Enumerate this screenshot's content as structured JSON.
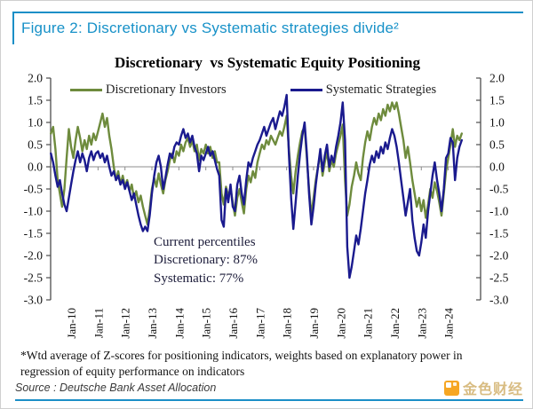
{
  "figure_header": {
    "title": "Figure 2: Discretionary vs Systematic strategies divide²"
  },
  "accent_colors": {
    "header_blue": "#1b8fc7",
    "discretionary_green": "#6e8b3d",
    "systematic_navy": "#1a1a8e",
    "zero_line_gray": "#8c8c8c"
  },
  "chart_data": {
    "type": "line",
    "title": "Discretionary  vs Systematic Equity Positioning",
    "x_start_decimal_year": 2009.25,
    "x_step_months": 1,
    "xlim": [
      2009.24,
      2025.2
    ],
    "ylim": [
      -3.0,
      2.0
    ],
    "y_tick_step": 0.5,
    "y_tick_labels": [
      "2.0",
      "1.5",
      "1.0",
      "0.5",
      "0.0",
      "-0.5",
      "-1.0",
      "-1.5",
      "-2.0",
      "-2.5",
      "-3.0"
    ],
    "x_tick_years": [
      2010,
      2011,
      2012,
      2013,
      2014,
      2015,
      2016,
      2017,
      2018,
      2019,
      2020,
      2021,
      2022,
      2023,
      2024
    ],
    "x_tick_labels": [
      "Jan-10",
      "Jan-11",
      "Jan-12",
      "Jan-13",
      "Jan-14",
      "Jan-15",
      "Jan-16",
      "Jan-17",
      "Jan-18",
      "Jan-19",
      "Jan-20",
      "Jan-21",
      "Jan-22",
      "Jan-23",
      "Jan-24"
    ],
    "grid": "zero-line-only",
    "legend_position": "top-inside",
    "series": [
      {
        "name": "Discretionary Investors",
        "color": "#6e8b3d",
        "values": [
          0.75,
          0.9,
          0.4,
          -0.3,
          -0.6,
          -0.9,
          -0.5,
          0.2,
          0.85,
          0.45,
          0.2,
          0.6,
          0.9,
          0.65,
          0.35,
          0.6,
          0.4,
          0.7,
          0.5,
          0.75,
          0.6,
          0.8,
          1.0,
          1.2,
          0.9,
          1.1,
          0.7,
          0.4,
          0.0,
          -0.3,
          -0.1,
          -0.4,
          -0.2,
          -0.45,
          -0.3,
          -0.55,
          -0.4,
          -0.7,
          -0.55,
          -0.8,
          -0.65,
          -0.9,
          -1.1,
          -1.3,
          -0.95,
          -0.5,
          -0.25,
          -0.45,
          -0.15,
          -0.4,
          -0.6,
          -0.3,
          -0.1,
          0.15,
          0.3,
          0.1,
          0.35,
          0.25,
          0.5,
          0.35,
          0.55,
          0.65,
          0.45,
          0.6,
          0.35,
          0.5,
          0.15,
          0.4,
          0.3,
          0.5,
          0.3,
          0.45,
          0.2,
          0.35,
          0.1,
          0.1,
          -0.6,
          -0.85,
          -0.45,
          -0.65,
          -0.5,
          -0.8,
          -1.1,
          -0.7,
          -0.5,
          -0.8,
          -1.05,
          -0.5,
          -0.2,
          -0.35,
          -0.1,
          -0.25,
          0.1,
          0.3,
          0.5,
          0.4,
          0.6,
          0.5,
          0.7,
          0.6,
          0.5,
          0.65,
          0.8,
          0.7,
          0.9,
          1.15,
          0.4,
          -0.2,
          -0.6,
          -0.1,
          0.25,
          0.55,
          0.8,
          0.9,
          0.2,
          -0.5,
          -1.1,
          -0.7,
          -0.3,
          0.0,
          0.3,
          -0.2,
          0.1,
          0.35,
          -0.1,
          0.15,
          0.0,
          0.3,
          0.5,
          0.7,
          0.95,
          -0.3,
          -1.1,
          -0.85,
          -0.45,
          -0.2,
          0.1,
          -0.15,
          -0.3,
          0.2,
          0.55,
          0.8,
          0.6,
          0.9,
          1.1,
          0.95,
          1.2,
          1.05,
          1.3,
          1.15,
          1.4,
          1.25,
          1.45,
          1.3,
          1.45,
          1.2,
          0.9,
          0.6,
          0.2,
          0.45,
          0.1,
          -0.3,
          -0.6,
          -0.9,
          -0.7,
          -1.0,
          -0.75,
          -1.15,
          -0.85,
          -0.5,
          -0.7,
          -0.35,
          -0.55,
          -0.8,
          -1.1,
          -0.6,
          -0.1,
          0.2,
          0.5,
          0.85,
          0.45,
          0.7,
          0.6,
          0.75
        ]
      },
      {
        "name": "Systematic Strategies",
        "color": "#1a1a8e",
        "values": [
          0.3,
          0.1,
          -0.2,
          -0.45,
          -0.3,
          -0.6,
          -0.85,
          -1.0,
          -0.7,
          -0.4,
          -0.1,
          0.15,
          0.35,
          0.1,
          0.3,
          0.15,
          -0.1,
          0.2,
          0.35,
          0.15,
          0.3,
          0.35,
          0.2,
          0.3,
          0.1,
          0.25,
          0.0,
          -0.2,
          -0.1,
          -0.3,
          -0.2,
          -0.4,
          -0.3,
          -0.5,
          -0.35,
          -0.55,
          -0.75,
          -0.6,
          -0.85,
          -1.1,
          -1.3,
          -1.45,
          -1.35,
          -1.45,
          -1.1,
          -0.6,
          -0.2,
          0.1,
          0.25,
          0.0,
          -0.5,
          -0.25,
          0.05,
          0.3,
          0.2,
          0.45,
          0.55,
          0.5,
          0.7,
          0.85,
          0.65,
          0.75,
          0.55,
          0.7,
          0.45,
          0.3,
          -0.1,
          0.25,
          0.15,
          0.3,
          0.45,
          0.25,
          0.35,
          0.15,
          -0.05,
          -0.2,
          -1.2,
          -1.35,
          -0.5,
          -0.8,
          -0.4,
          -0.9,
          -1.0,
          -0.4,
          -0.2,
          -0.6,
          -0.85,
          -0.3,
          0.1,
          0.0,
          0.2,
          0.35,
          0.5,
          0.6,
          0.75,
          0.9,
          0.7,
          0.85,
          1.0,
          1.1,
          0.85,
          1.05,
          1.25,
          1.15,
          1.35,
          1.62,
          0.3,
          -0.7,
          -1.4,
          -0.8,
          -0.2,
          0.3,
          0.7,
          1.0,
          0.3,
          -0.6,
          -1.3,
          -0.9,
          -0.4,
          0.0,
          0.4,
          -0.1,
          0.25,
          0.5,
          0.0,
          0.25,
          0.1,
          0.45,
          0.7,
          1.0,
          1.45,
          0.6,
          -1.8,
          -2.5,
          -2.25,
          -1.9,
          -1.55,
          -1.75,
          -1.4,
          -1.0,
          -0.6,
          -0.3,
          0.05,
          0.25,
          0.1,
          0.35,
          0.2,
          0.45,
          0.3,
          0.55,
          0.4,
          0.65,
          0.85,
          0.7,
          0.45,
          0.1,
          -0.3,
          -0.7,
          -1.1,
          -0.8,
          -0.5,
          -1.2,
          -1.6,
          -1.9,
          -2.0,
          -1.7,
          -1.3,
          -1.6,
          -1.0,
          -0.6,
          -0.2,
          0.1,
          -0.3,
          -0.6,
          -1.0,
          -0.5,
          0.2,
          0.3,
          0.65,
          0.55,
          -0.3,
          0.2,
          0.45,
          0.6
        ]
      }
    ],
    "annotation": {
      "lines": [
        "Current percentiles",
        "Discretionary: 87%",
        "Systematic: 77%"
      ]
    }
  },
  "footnote": "*Wtd average of Z-scores for positioning indicators, weights based on explanatory power in regression of equity performance on indicators",
  "source": "Source : Deutsche Bank Asset Allocation",
  "logo": {
    "text": "金色财经",
    "icon": "jinse-finance-icon",
    "orange": "#f6a623",
    "gold": "#d8bc82"
  }
}
